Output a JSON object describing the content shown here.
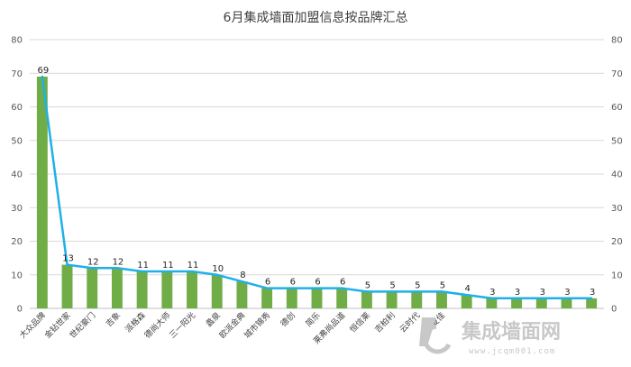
{
  "chart_data": {
    "type": "bar",
    "title": "6月集成墙面加盟信息按品牌汇总",
    "categories": [
      "大众品牌",
      "金钻世家",
      "世纪豪门",
      "吉象",
      "派格森",
      "德尚大师",
      "三一阳光",
      "蠡泉",
      "欧派金典",
      "城市锦秀",
      "德创",
      "简乐",
      "莱弗尚品道",
      "恒信莱",
      "吉柏利",
      "云时代",
      "华夏佳",
      "",
      "",
      "",
      "",
      "",
      ""
    ],
    "values": [
      69,
      13,
      12,
      12,
      11,
      11,
      11,
      10,
      8,
      6,
      6,
      6,
      6,
      5,
      5,
      5,
      5,
      4,
      3,
      3,
      3,
      3,
      3
    ],
    "series": [
      {
        "name": "",
        "kind": "bar",
        "color": "#70ad47"
      },
      {
        "name": "",
        "kind": "line",
        "color": "#1fb0e8"
      }
    ],
    "ylim": [
      0,
      80
    ],
    "yticks": [
      0,
      10,
      20,
      30,
      40,
      50,
      60,
      70,
      80
    ],
    "y2ticks": [
      0,
      10,
      20,
      30,
      40,
      50,
      60,
      70,
      80
    ],
    "grid": true,
    "data_labels": [
      "69",
      "13",
      "12",
      "12",
      "11",
      "11",
      "11",
      "10",
      "8",
      "6",
      "6",
      "6",
      "6",
      "5",
      "5",
      "5",
      "5",
      "4",
      "3",
      "3",
      "3",
      "3",
      "3"
    ]
  },
  "watermark": {
    "text": "集成墙面网",
    "url": "www.jcqm001.com"
  }
}
